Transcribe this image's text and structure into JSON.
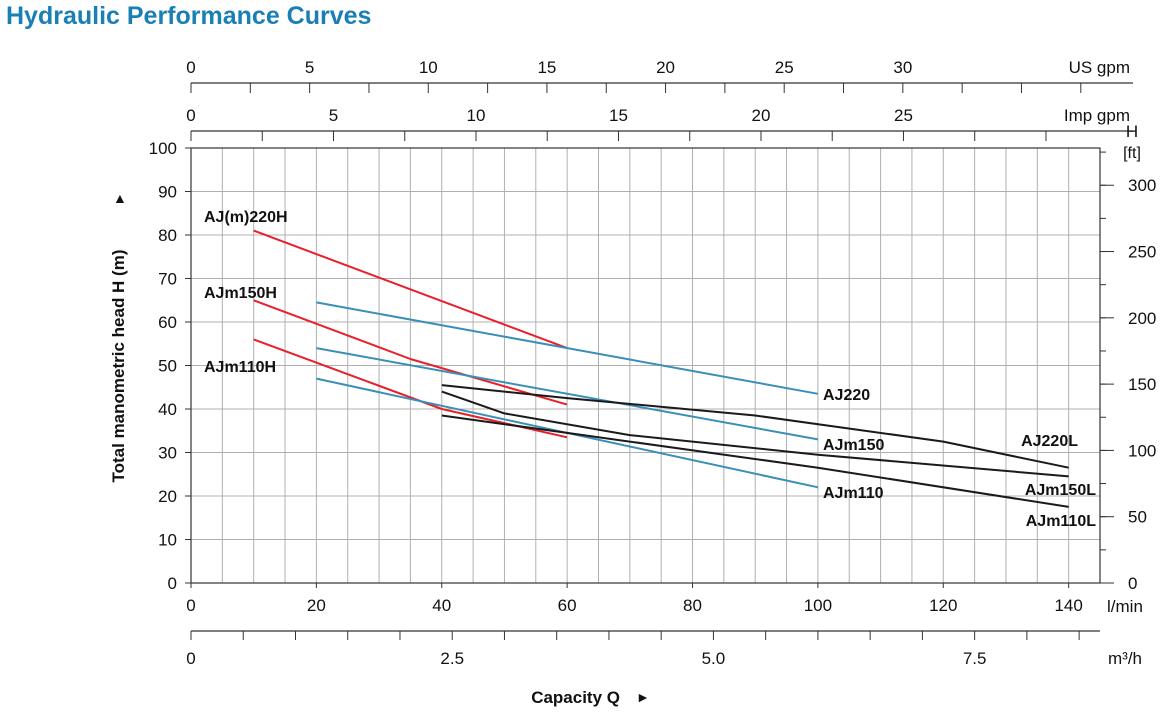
{
  "page": {
    "title": "Hydraulic Performance Curves",
    "title_color": "#1a7fb5"
  },
  "chart_data": {
    "type": "line",
    "title": "Hydraulic Performance Curves",
    "xlabel": "Capacity Q",
    "ylabel": "Total manometric head H (m)",
    "x_arrow": "►",
    "y_arrow": "▲",
    "xlim": [
      0,
      145
    ],
    "ylim": [
      0,
      100
    ],
    "grid": true,
    "x_unit": "l/min",
    "y_unit_right_top": "H",
    "y_unit_right_bottom": "[ft]",
    "x_ticks": [
      0,
      20,
      40,
      60,
      80,
      100,
      120,
      140
    ],
    "y_ticks": [
      0,
      10,
      20,
      30,
      40,
      50,
      60,
      70,
      80,
      90,
      100
    ],
    "secondary_axes": {
      "us_gpm": {
        "unit": "US gpm",
        "factor_lpm": 3.785,
        "ticks": [
          0,
          5,
          10,
          15,
          20,
          25,
          30
        ],
        "minor_step": 2.5
      },
      "imp_gpm": {
        "unit": "Imp gpm",
        "factor_lpm": 4.546,
        "ticks": [
          0,
          5,
          10,
          15,
          20,
          25
        ],
        "minor_step": 2.5
      },
      "ft": {
        "factor_m": 0.3048,
        "ticks": [
          0,
          50,
          100,
          150,
          200,
          250,
          300
        ],
        "minor_step": 25
      },
      "m3h": {
        "unit": "m³/h",
        "factor_lpm": 16.667,
        "ticks": [
          "0",
          "2.5",
          "5.0",
          "7.5"
        ],
        "tick_values": [
          0,
          2.5,
          5,
          7.5
        ],
        "minor_step": 0.5
      }
    },
    "colors": {
      "red": "#e8202a",
      "blue": "#3a8fb7",
      "black": "#1a1a1a",
      "grid": "#b0b0b0",
      "axis": "#333333"
    },
    "series": [
      {
        "name": "AJ(m)220H",
        "color": "red",
        "points": [
          [
            10,
            81
          ],
          [
            60,
            54
          ]
        ]
      },
      {
        "name": "AJm150H",
        "color": "red",
        "points": [
          [
            10,
            65
          ],
          [
            35,
            51.5
          ],
          [
            60,
            41
          ]
        ]
      },
      {
        "name": "AJm110H",
        "color": "red",
        "points": [
          [
            10,
            56
          ],
          [
            40,
            40
          ],
          [
            60,
            33.5
          ]
        ]
      },
      {
        "name": "AJ220",
        "color": "blue",
        "points": [
          [
            20,
            64.5
          ],
          [
            100,
            43.5
          ]
        ]
      },
      {
        "name": "AJm150",
        "color": "blue",
        "points": [
          [
            20,
            54
          ],
          [
            100,
            33
          ]
        ]
      },
      {
        "name": "AJm110",
        "color": "blue",
        "points": [
          [
            20,
            47
          ],
          [
            100,
            22
          ]
        ]
      },
      {
        "name": "AJ220L",
        "color": "black",
        "points": [
          [
            40,
            45.5
          ],
          [
            60,
            42.5
          ],
          [
            90,
            38.5
          ],
          [
            120,
            32.5
          ],
          [
            140,
            26.5
          ]
        ]
      },
      {
        "name": "AJm150L",
        "color": "black",
        "points": [
          [
            40,
            44
          ],
          [
            50,
            39
          ],
          [
            70,
            34
          ],
          [
            100,
            29.5
          ],
          [
            140,
            24.5
          ]
        ]
      },
      {
        "name": "AJm110L",
        "color": "black",
        "points": [
          [
            40,
            38.5
          ],
          [
            60,
            34.5
          ],
          [
            100,
            26.5
          ],
          [
            140,
            17.5
          ]
        ]
      }
    ],
    "annotations": [
      "AJ(m)220H",
      "AJm150H",
      "AJm110H",
      "AJ220",
      "AJm150",
      "AJm110",
      "AJ220L",
      "AJm150L",
      "AJm110L"
    ]
  }
}
